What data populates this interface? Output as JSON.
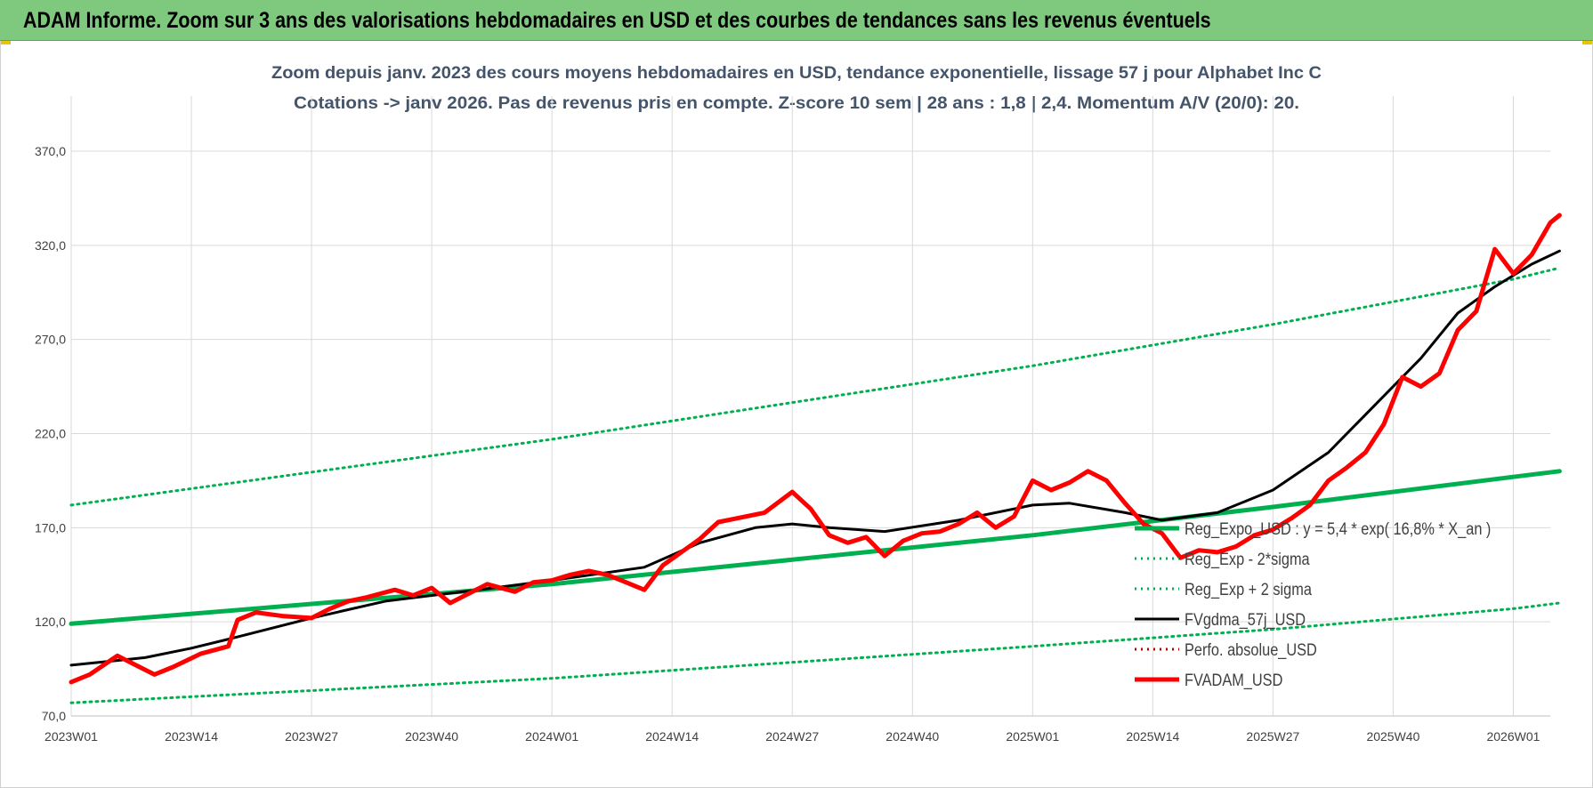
{
  "banner": {
    "title": "ADAM Informe. Zoom sur 3 ans des valorisations hebdomadaires en USD et des courbes de tendances sans les revenus éventuels"
  },
  "chart_data": {
    "type": "line",
    "title_line1": "Zoom depuis janv. 2023 des cours moyens hebdomadaires en USD, tendance exponentielle, lissage 57 j pour Alphabet Inc C",
    "title_line2": "Cotations -> janv 2026. Pas de revenus pris en compte. Z-score 10 sem | 28 ans : 1,8 | 2,4. Momentum A/V (20/0): 20.",
    "ylim": [
      70,
      370
    ],
    "yticks": [
      "70,0",
      "120,0",
      "170,0",
      "220,0",
      "270,0",
      "320,0",
      "370,0"
    ],
    "ytick_values": [
      70,
      120,
      170,
      220,
      270,
      320,
      370
    ],
    "xticks": [
      "2023W01",
      "2023W14",
      "2023W27",
      "2023W40",
      "2024W01",
      "2024W14",
      "2024W27",
      "2024W40",
      "2025W01",
      "2025W14",
      "2025W27",
      "2025W40",
      "2026W01"
    ],
    "xtick_weeks": [
      0,
      13,
      26,
      39,
      52,
      65,
      78,
      91,
      104,
      117,
      130,
      143,
      156
    ],
    "week_count": 161,
    "grid": true,
    "legend_position": "bottom-right",
    "colors": {
      "trend": "#00b050",
      "smooth": "#000000",
      "price": "#ff0000",
      "perfo": "#c00000",
      "grid": "#d9d9d9",
      "text": "#404040",
      "title": "#44546a"
    },
    "series": [
      {
        "name": "Reg_Expo_USD : y = 5,4 * exp( 16,8% * X_an )",
        "style": "solid-thick",
        "color": "#00b050",
        "x_weeks": [
          0,
          52,
          104,
          130,
          156,
          161
        ],
        "values": [
          119,
          140,
          166,
          181,
          197,
          200
        ]
      },
      {
        "name": "Reg_Exp - 2*sigma",
        "style": "dotted",
        "color": "#00b050",
        "x_weeks": [
          0,
          52,
          104,
          130,
          156,
          161
        ],
        "values": [
          77,
          90,
          107,
          116,
          127,
          130
        ]
      },
      {
        "name": "Reg_Exp + 2 sigma",
        "style": "dotted",
        "color": "#00b050",
        "x_weeks": [
          0,
          52,
          104,
          130,
          156,
          161
        ],
        "values": [
          182,
          217,
          256,
          278,
          302,
          308
        ]
      },
      {
        "name": "FVgdma_57j_USD",
        "style": "solid",
        "color": "#000000",
        "x_weeks": [
          0,
          8,
          13,
          18,
          26,
          34,
          44,
          52,
          62,
          68,
          74,
          78,
          82,
          88,
          96,
          104,
          108,
          114,
          118,
          124,
          130,
          136,
          142,
          146,
          150,
          154,
          158,
          161
        ],
        "values": [
          97,
          101,
          106,
          112,
          122,
          131,
          137,
          142,
          149,
          162,
          170,
          172,
          170,
          168,
          174,
          182,
          183,
          178,
          174,
          178,
          190,
          210,
          240,
          260,
          284,
          298,
          310,
          317
        ]
      },
      {
        "name": "Perfo. absolue_USD",
        "style": "dotted",
        "color": "#c00000",
        "x_weeks": [],
        "values": []
      },
      {
        "name": "FVADAM_USD",
        "style": "solid-thick",
        "color": "#ff0000",
        "x_weeks": [
          0,
          2,
          5,
          7,
          9,
          11,
          14,
          17,
          18,
          20,
          23,
          26,
          28,
          30,
          32,
          35,
          37,
          39,
          41,
          43,
          45,
          48,
          50,
          52,
          54,
          56,
          58,
          60,
          62,
          64,
          66,
          68,
          70,
          72,
          75,
          78,
          80,
          82,
          84,
          86,
          88,
          90,
          92,
          94,
          96,
          98,
          100,
          102,
          104,
          106,
          108,
          110,
          112,
          114,
          116,
          118,
          120,
          122,
          124,
          126,
          128,
          130,
          132,
          134,
          136,
          138,
          140,
          142,
          144,
          146,
          148,
          150,
          152,
          154,
          156,
          158,
          160,
          161
        ],
        "values": [
          88,
          92,
          102,
          97,
          92,
          96,
          103,
          107,
          121,
          125,
          123,
          122,
          127,
          131,
          133,
          137,
          134,
          138,
          130,
          135,
          140,
          136,
          141,
          142,
          145,
          147,
          145,
          141,
          137,
          150,
          157,
          164,
          173,
          175,
          178,
          189,
          180,
          166,
          162,
          165,
          155,
          163,
          167,
          168,
          172,
          178,
          170,
          176,
          195,
          190,
          194,
          200,
          195,
          183,
          172,
          167,
          154,
          158,
          157,
          160,
          166,
          169,
          175,
          182,
          195,
          202,
          210,
          225,
          250,
          245,
          252,
          275,
          285,
          318,
          305,
          315,
          332,
          336
        ]
      }
    ]
  }
}
